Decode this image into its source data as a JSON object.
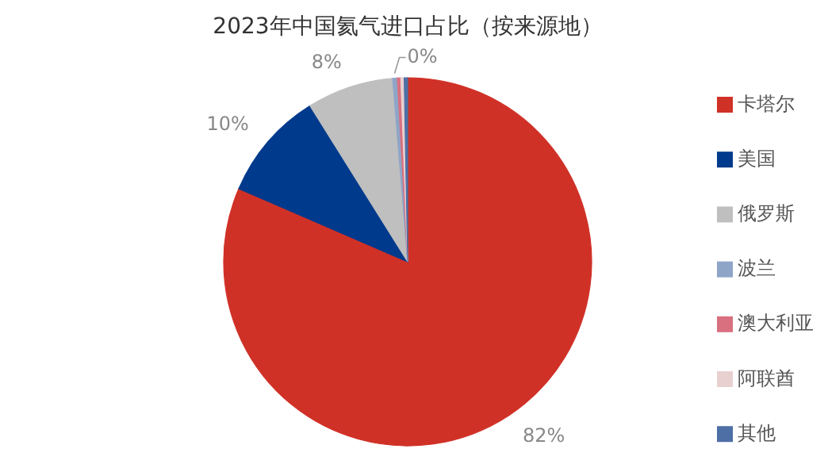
{
  "chart_data": {
    "type": "pie",
    "title": "2023年中国氦气进口占比（按来源地）",
    "categories": [
      "卡塔尔",
      "美国",
      "俄罗斯",
      "波兰",
      "澳大利亚",
      "阿联酋",
      "其他"
    ],
    "values": [
      81.5,
      9.6,
      7.6,
      0.4,
      0.3,
      0.3,
      0.3
    ],
    "colors": [
      "#d03127",
      "#003a8c",
      "#bfbfbf",
      "#8ea5c8",
      "#d9707f",
      "#e9d0d0",
      "#4e6fa6"
    ],
    "value_labels": [
      "82%",
      "10%",
      "8%",
      "0%",
      null,
      null,
      null
    ],
    "legend": "right"
  }
}
